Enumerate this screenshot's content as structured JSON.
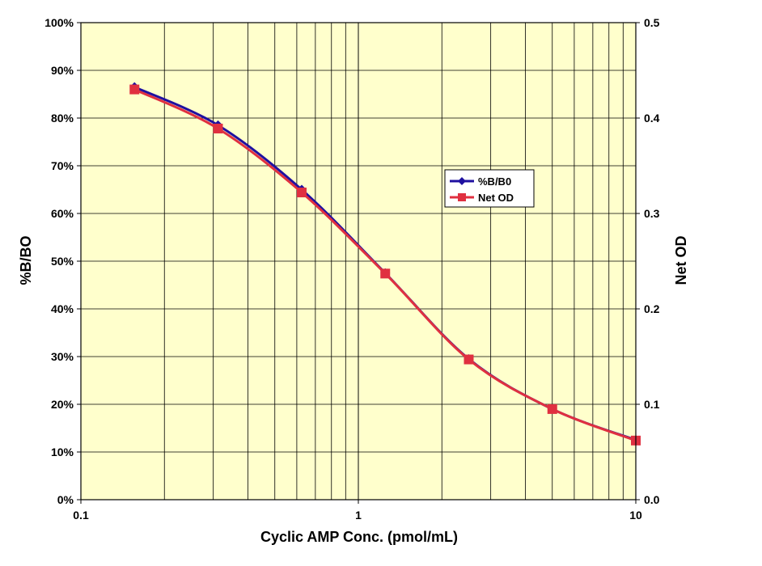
{
  "chart_data": {
    "type": "line",
    "title": "",
    "xlabel": "Cyclic AMP Conc. (pmol/mL)",
    "ylabel": "%B/BO",
    "y2label": "Net OD",
    "x_scale": "log",
    "xlim": [
      0.1,
      10
    ],
    "ylim": [
      0,
      100
    ],
    "y2lim": [
      0.0,
      0.5
    ],
    "x_ticks": [
      "0.1",
      "1",
      "10"
    ],
    "y_ticks": [
      "0%",
      "10%",
      "20%",
      "30%",
      "40%",
      "50%",
      "60%",
      "70%",
      "80%",
      "90%",
      "100%"
    ],
    "y2_ticks": [
      "0.0",
      "0.1",
      "0.2",
      "0.3",
      "0.4",
      "0.5"
    ],
    "grid": true,
    "plot_background": "#ffffcc",
    "legend_position": "center-right",
    "series": [
      {
        "name": "%B/B0",
        "axis": "left",
        "color": "#1f10a0",
        "marker": "diamond",
        "x": [
          0.156,
          0.312,
          0.625,
          1.25,
          2.5,
          5,
          10
        ],
        "y": [
          86.5,
          78.5,
          65.0,
          47.5,
          29.5,
          19.0,
          12.5
        ]
      },
      {
        "name": "Net OD",
        "axis": "right",
        "color": "#e03040",
        "marker": "square",
        "x": [
          0.156,
          0.312,
          0.625,
          1.25,
          2.5,
          5,
          10
        ],
        "y": [
          0.43,
          0.389,
          0.322,
          0.237,
          0.147,
          0.095,
          0.062
        ]
      }
    ]
  }
}
